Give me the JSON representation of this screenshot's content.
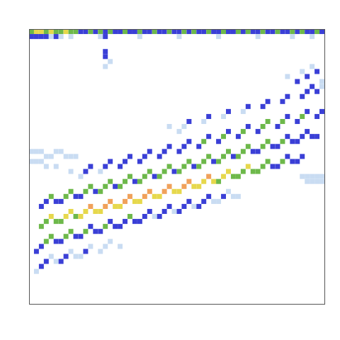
{
  "chart_data": {
    "type": "heatmap",
    "tick_labels": false,
    "grid": false,
    "xlim": [
      0,
      60
    ],
    "ylim": [
      0,
      55
    ],
    "zlim": [
      0,
      5
    ],
    "cells": [
      [
        2,
        15,
        3
      ],
      [
        3,
        16,
        3
      ],
      [
        4,
        17,
        4
      ],
      [
        5,
        16,
        3
      ],
      [
        6,
        16,
        3
      ],
      [
        7,
        17,
        4
      ],
      [
        8,
        18,
        4
      ],
      [
        9,
        17,
        3
      ],
      [
        10,
        17,
        4
      ],
      [
        11,
        18,
        4
      ],
      [
        12,
        19,
        5
      ],
      [
        13,
        18,
        4
      ],
      [
        14,
        18,
        4
      ],
      [
        15,
        19,
        5
      ],
      [
        16,
        20,
        5
      ],
      [
        17,
        19,
        4
      ],
      [
        18,
        19,
        4
      ],
      [
        19,
        20,
        5
      ],
      [
        20,
        21,
        5
      ],
      [
        21,
        20,
        4
      ],
      [
        22,
        20,
        4
      ],
      [
        23,
        21,
        5
      ],
      [
        24,
        22,
        5
      ],
      [
        25,
        21,
        4
      ],
      [
        26,
        21,
        4
      ],
      [
        27,
        22,
        5
      ],
      [
        28,
        23,
        5
      ],
      [
        29,
        22,
        4
      ],
      [
        30,
        22,
        4
      ],
      [
        31,
        23,
        5
      ],
      [
        32,
        24,
        5
      ],
      [
        33,
        23,
        4
      ],
      [
        34,
        23,
        4
      ],
      [
        35,
        24,
        4
      ],
      [
        36,
        25,
        5
      ],
      [
        37,
        24,
        4
      ],
      [
        38,
        24,
        3
      ],
      [
        39,
        25,
        4
      ],
      [
        40,
        26,
        4
      ],
      [
        41,
        25,
        3
      ],
      [
        42,
        25,
        3
      ],
      [
        43,
        26,
        3
      ],
      [
        44,
        27,
        4
      ],
      [
        45,
        26,
        3
      ],
      [
        46,
        26,
        3
      ],
      [
        47,
        27,
        3
      ],
      [
        48,
        28,
        3
      ],
      [
        49,
        27,
        2
      ],
      [
        50,
        27,
        2
      ],
      [
        51,
        28,
        3
      ],
      [
        52,
        29,
        2
      ],
      [
        53,
        28,
        2
      ],
      [
        54,
        28,
        2
      ],
      [
        55,
        29,
        2
      ],
      [
        2,
        19,
        2
      ],
      [
        3,
        20,
        2
      ],
      [
        4,
        21,
        3
      ],
      [
        5,
        20,
        2
      ],
      [
        6,
        20,
        2
      ],
      [
        7,
        21,
        3
      ],
      [
        8,
        22,
        3
      ],
      [
        9,
        21,
        2
      ],
      [
        10,
        21,
        2
      ],
      [
        11,
        22,
        3
      ],
      [
        12,
        23,
        3
      ],
      [
        13,
        22,
        2
      ],
      [
        14,
        22,
        3
      ],
      [
        15,
        23,
        3
      ],
      [
        16,
        24,
        3
      ],
      [
        17,
        23,
        2
      ],
      [
        18,
        23,
        3
      ],
      [
        19,
        24,
        3
      ],
      [
        20,
        25,
        3
      ],
      [
        21,
        24,
        2
      ],
      [
        22,
        24,
        3
      ],
      [
        23,
        25,
        3
      ],
      [
        24,
        26,
        3
      ],
      [
        25,
        25,
        2
      ],
      [
        26,
        25,
        3
      ],
      [
        27,
        26,
        3
      ],
      [
        28,
        27,
        3
      ],
      [
        29,
        26,
        2
      ],
      [
        30,
        26,
        3
      ],
      [
        31,
        27,
        3
      ],
      [
        32,
        28,
        3
      ],
      [
        33,
        27,
        2
      ],
      [
        34,
        27,
        3
      ],
      [
        35,
        28,
        3
      ],
      [
        36,
        29,
        3
      ],
      [
        37,
        28,
        2
      ],
      [
        38,
        28,
        3
      ],
      [
        39,
        29,
        3
      ],
      [
        40,
        30,
        3
      ],
      [
        41,
        29,
        2
      ],
      [
        42,
        29,
        3
      ],
      [
        43,
        30,
        3
      ],
      [
        44,
        31,
        3
      ],
      [
        45,
        30,
        2
      ],
      [
        46,
        30,
        2
      ],
      [
        47,
        31,
        3
      ],
      [
        48,
        32,
        3
      ],
      [
        49,
        31,
        2
      ],
      [
        50,
        31,
        2
      ],
      [
        51,
        32,
        3
      ],
      [
        52,
        33,
        2
      ],
      [
        53,
        32,
        2
      ],
      [
        54,
        32,
        2
      ],
      [
        55,
        33,
        2
      ],
      [
        56,
        34,
        2
      ],
      [
        57,
        33,
        2
      ],
      [
        58,
        33,
        2
      ],
      [
        1,
        10,
        2
      ],
      [
        2,
        11,
        2
      ],
      [
        3,
        12,
        3
      ],
      [
        4,
        13,
        3
      ],
      [
        5,
        12,
        2
      ],
      [
        6,
        12,
        2
      ],
      [
        7,
        13,
        3
      ],
      [
        8,
        14,
        3
      ],
      [
        9,
        13,
        2
      ],
      [
        10,
        13,
        2
      ],
      [
        11,
        14,
        3
      ],
      [
        12,
        15,
        2
      ],
      [
        13,
        14,
        2
      ],
      [
        14,
        14,
        2
      ],
      [
        15,
        15,
        3
      ],
      [
        16,
        16,
        2
      ],
      [
        17,
        15,
        2
      ],
      [
        18,
        15,
        2
      ],
      [
        19,
        16,
        2
      ],
      [
        20,
        17,
        3
      ],
      [
        21,
        16,
        2
      ],
      [
        22,
        16,
        2
      ],
      [
        23,
        17,
        2
      ],
      [
        24,
        18,
        2
      ],
      [
        25,
        17,
        1
      ],
      [
        26,
        17,
        2
      ],
      [
        27,
        18,
        2
      ],
      [
        28,
        19,
        2
      ],
      [
        29,
        18,
        1
      ],
      [
        30,
        18,
        2
      ],
      [
        31,
        19,
        2
      ],
      [
        32,
        20,
        2
      ],
      [
        33,
        19,
        1
      ],
      [
        34,
        19,
        2
      ],
      [
        35,
        20,
        2
      ],
      [
        36,
        21,
        2
      ],
      [
        37,
        20,
        1
      ],
      [
        38,
        20,
        1
      ],
      [
        39,
        21,
        2
      ],
      [
        40,
        22,
        1
      ],
      [
        41,
        21,
        1
      ],
      [
        42,
        21,
        1
      ],
      [
        1,
        6,
        1
      ],
      [
        2,
        7,
        2
      ],
      [
        3,
        8,
        2
      ],
      [
        4,
        9,
        1
      ],
      [
        5,
        8,
        1
      ],
      [
        6,
        8,
        2
      ],
      [
        7,
        9,
        2
      ],
      [
        8,
        10,
        1
      ],
      [
        9,
        9,
        1
      ],
      [
        10,
        9,
        1
      ],
      [
        11,
        10,
        2
      ],
      [
        12,
        11,
        1
      ],
      [
        14,
        10,
        1
      ],
      [
        15,
        11,
        1
      ],
      [
        16,
        12,
        1
      ],
      [
        18,
        11,
        1
      ],
      [
        8,
        26,
        1
      ],
      [
        10,
        25,
        1
      ],
      [
        11,
        26,
        2
      ],
      [
        12,
        27,
        2
      ],
      [
        14,
        26,
        1
      ],
      [
        15,
        27,
        2
      ],
      [
        16,
        28,
        2
      ],
      [
        18,
        27,
        2
      ],
      [
        19,
        28,
        2
      ],
      [
        20,
        29,
        2
      ],
      [
        22,
        28,
        2
      ],
      [
        23,
        29,
        2
      ],
      [
        24,
        30,
        2
      ],
      [
        26,
        29,
        2
      ],
      [
        27,
        30,
        2
      ],
      [
        28,
        31,
        2
      ],
      [
        30,
        30,
        2
      ],
      [
        31,
        31,
        2
      ],
      [
        32,
        32,
        2
      ],
      [
        34,
        31,
        2
      ],
      [
        35,
        32,
        3
      ],
      [
        36,
        33,
        2
      ],
      [
        38,
        32,
        2
      ],
      [
        39,
        33,
        3
      ],
      [
        40,
        34,
        2
      ],
      [
        42,
        33,
        2
      ],
      [
        43,
        34,
        3
      ],
      [
        44,
        35,
        2
      ],
      [
        46,
        34,
        2
      ],
      [
        47,
        35,
        3
      ],
      [
        48,
        36,
        3
      ],
      [
        50,
        35,
        2
      ],
      [
        51,
        36,
        3
      ],
      [
        52,
        37,
        2
      ],
      [
        54,
        36,
        2
      ],
      [
        55,
        37,
        3
      ],
      [
        56,
        38,
        2
      ],
      [
        58,
        37,
        2
      ],
      [
        59,
        38,
        2
      ],
      [
        28,
        35,
        1
      ],
      [
        30,
        34,
        1
      ],
      [
        31,
        35,
        1
      ],
      [
        32,
        36,
        2
      ],
      [
        35,
        36,
        1
      ],
      [
        36,
        37,
        2
      ],
      [
        39,
        37,
        1
      ],
      [
        40,
        38,
        2
      ],
      [
        43,
        38,
        1
      ],
      [
        44,
        39,
        2
      ],
      [
        47,
        39,
        2
      ],
      [
        48,
        40,
        2
      ],
      [
        51,
        40,
        2
      ],
      [
        52,
        41,
        2
      ],
      [
        55,
        41,
        2
      ],
      [
        56,
        42,
        2
      ],
      [
        57,
        43,
        2
      ],
      [
        58,
        42,
        2
      ],
      [
        59,
        43,
        1
      ],
      [
        52,
        45,
        1
      ],
      [
        54,
        44,
        2
      ],
      [
        55,
        46,
        1
      ],
      [
        56,
        45,
        2
      ],
      [
        57,
        47,
        1
      ],
      [
        58,
        46,
        2
      ],
      [
        59,
        44,
        1
      ],
      [
        0,
        54,
        3
      ],
      [
        1,
        54,
        4
      ],
      [
        2,
        54,
        4
      ],
      [
        3,
        54,
        3
      ],
      [
        4,
        54,
        4
      ],
      [
        5,
        54,
        3
      ],
      [
        6,
        54,
        3
      ],
      [
        7,
        54,
        4
      ],
      [
        8,
        54,
        3
      ],
      [
        9,
        54,
        3
      ],
      [
        10,
        54,
        2
      ],
      [
        11,
        54,
        2
      ],
      [
        12,
        54,
        3
      ],
      [
        13,
        54,
        2
      ],
      [
        14,
        54,
        3
      ],
      [
        15,
        54,
        2
      ],
      [
        16,
        54,
        3
      ],
      [
        17,
        54,
        2
      ],
      [
        18,
        54,
        2
      ],
      [
        19,
        54,
        3
      ],
      [
        20,
        54,
        2
      ],
      [
        21,
        54,
        2
      ],
      [
        22,
        54,
        3
      ],
      [
        23,
        54,
        2
      ],
      [
        24,
        54,
        2
      ],
      [
        25,
        54,
        3
      ],
      [
        26,
        54,
        2
      ],
      [
        27,
        54,
        2
      ],
      [
        28,
        54,
        3
      ],
      [
        29,
        54,
        2
      ],
      [
        30,
        54,
        2
      ],
      [
        31,
        54,
        3
      ],
      [
        32,
        54,
        2
      ],
      [
        33,
        54,
        3
      ],
      [
        34,
        54,
        2
      ],
      [
        35,
        54,
        2
      ],
      [
        36,
        54,
        3
      ],
      [
        37,
        54,
        2
      ],
      [
        38,
        54,
        2
      ],
      [
        39,
        54,
        3
      ],
      [
        40,
        54,
        2
      ],
      [
        41,
        54,
        2
      ],
      [
        42,
        54,
        3
      ],
      [
        43,
        54,
        2
      ],
      [
        44,
        54,
        3
      ],
      [
        45,
        54,
        2
      ],
      [
        46,
        54,
        2
      ],
      [
        47,
        54,
        3
      ],
      [
        48,
        54,
        2
      ],
      [
        49,
        54,
        2
      ],
      [
        50,
        54,
        3
      ],
      [
        51,
        54,
        2
      ],
      [
        52,
        54,
        2
      ],
      [
        53,
        54,
        3
      ],
      [
        54,
        54,
        2
      ],
      [
        55,
        54,
        3
      ],
      [
        56,
        54,
        2
      ],
      [
        57,
        54,
        2
      ],
      [
        58,
        54,
        3
      ],
      [
        59,
        54,
        2
      ],
      [
        0,
        53,
        2
      ],
      [
        1,
        53,
        2
      ],
      [
        2,
        53,
        2
      ],
      [
        3,
        53,
        2
      ],
      [
        4,
        53,
        1
      ],
      [
        5,
        53,
        2
      ],
      [
        6,
        53,
        1
      ],
      [
        8,
        53,
        1
      ],
      [
        14,
        53,
        1
      ],
      [
        15,
        53,
        2
      ],
      [
        22,
        53,
        1
      ],
      [
        30,
        53,
        1
      ],
      [
        38,
        53,
        1
      ],
      [
        46,
        53,
        1
      ],
      [
        53,
        53,
        1
      ],
      [
        57,
        53,
        1
      ],
      [
        15,
        50,
        2
      ],
      [
        15,
        49,
        2
      ],
      [
        16,
        48,
        1
      ],
      [
        15,
        47,
        1
      ],
      [
        0,
        30,
        1
      ],
      [
        1,
        30,
        1
      ],
      [
        2,
        30,
        1
      ],
      [
        3,
        29,
        1
      ],
      [
        4,
        29,
        1
      ],
      [
        5,
        30,
        1
      ],
      [
        6,
        30,
        1
      ],
      [
        7,
        29,
        1
      ],
      [
        8,
        29,
        1
      ],
      [
        9,
        29,
        1
      ],
      [
        0,
        28,
        1
      ],
      [
        1,
        28,
        1
      ],
      [
        2,
        28,
        1
      ],
      [
        3,
        27,
        1
      ],
      [
        5,
        27,
        1
      ],
      [
        55,
        25,
        1
      ],
      [
        56,
        25,
        1
      ],
      [
        57,
        25,
        1
      ],
      [
        58,
        25,
        1
      ],
      [
        59,
        25,
        1
      ],
      [
        56,
        24,
        1
      ],
      [
        57,
        24,
        1
      ],
      [
        58,
        24,
        1
      ],
      [
        59,
        24,
        1
      ]
    ]
  }
}
